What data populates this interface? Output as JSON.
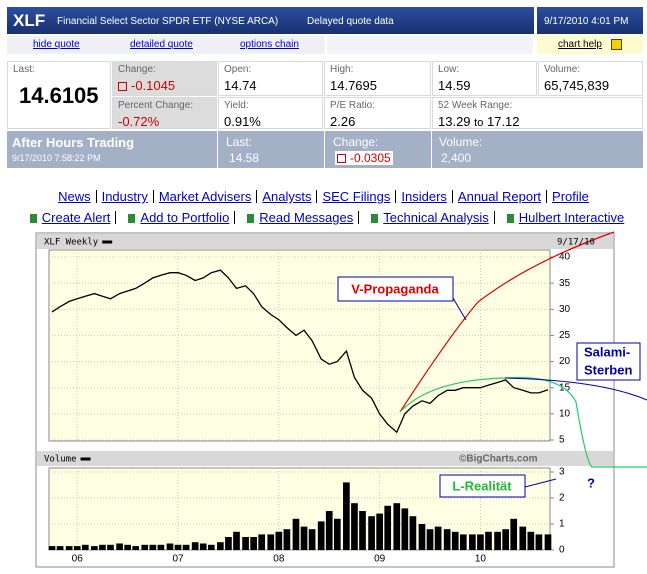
{
  "header": {
    "symbol": "XLF",
    "name": "Financial Select Sector SPDR ETF (NYSE ARCA)",
    "note": "Delayed quote data",
    "datetime": "9/17/2010 4:01 PM"
  },
  "links": [
    "hide quote",
    "detailed quote",
    "options chain",
    "chart help"
  ],
  "quote": {
    "last": {
      "label": "Last:",
      "value": "14.6105"
    },
    "change": {
      "label": "Change:",
      "value": "-0.1045"
    },
    "open": {
      "label": "Open:",
      "value": "14.74"
    },
    "high": {
      "label": "High:",
      "value": "14.7695"
    },
    "low": {
      "label": "Low:",
      "value": "14.59"
    },
    "volume": {
      "label": "Volume:",
      "value": "65,745,839"
    },
    "percent_change": {
      "label": "Percent Change:",
      "value": "-0.72%"
    },
    "yield": {
      "label": "Yield:",
      "value": "0.91%"
    },
    "pe": {
      "label": "P/E Ratio:",
      "value": "2.26"
    },
    "range": {
      "label": "52 Week Range:",
      "low": "13.29",
      "joiner": "to",
      "high": "17.12"
    }
  },
  "after_hours": {
    "title": "After Hours Trading",
    "time": "9/17/2010 7:58:22 PM",
    "last": {
      "label": "Last:",
      "value": "14.58"
    },
    "change": {
      "label": "Change:",
      "value": "-0.0305"
    },
    "volume": {
      "label": "Volume:",
      "value": "2,400"
    }
  },
  "nav": [
    "News",
    "Industry",
    "Market Advisers",
    "Analysts",
    "SEC Filings",
    "Insiders",
    "Annual Report",
    "Profile"
  ],
  "tools": [
    "Create Alert",
    "Add to Portfolio",
    "Read Messages",
    "Technical Analysis",
    "Hulbert Interactive"
  ],
  "chart_data": {
    "type": "line",
    "date": "9/17/10",
    "source": "©BigCharts.com",
    "x": [
      2005.75,
      2005.83,
      2005.92,
      2006.0,
      2006.08,
      2006.17,
      2006.25,
      2006.33,
      2006.42,
      2006.5,
      2006.58,
      2006.67,
      2006.75,
      2006.83,
      2006.92,
      2007.0,
      2007.08,
      2007.17,
      2007.25,
      2007.33,
      2007.42,
      2007.5,
      2007.58,
      2007.67,
      2007.75,
      2007.83,
      2007.92,
      2008.0,
      2008.08,
      2008.17,
      2008.25,
      2008.33,
      2008.42,
      2008.5,
      2008.58,
      2008.67,
      2008.75,
      2008.83,
      2008.92,
      2009.0,
      2009.08,
      2009.17,
      2009.25,
      2009.33,
      2009.42,
      2009.5,
      2009.58,
      2009.67,
      2009.75,
      2009.83,
      2009.92,
      2010.0,
      2010.08,
      2010.17,
      2010.25,
      2010.33,
      2010.42,
      2010.5,
      2010.58,
      2010.67
    ],
    "series": [
      {
        "name": "XLF Weekly",
        "color": "#000000",
        "values": [
          29.5,
          30.5,
          31.5,
          32.0,
          32.5,
          33.0,
          32.5,
          32.0,
          33.0,
          33.5,
          34.0,
          35.0,
          36.0,
          36.5,
          37.0,
          37.0,
          36.5,
          35.5,
          36.0,
          37.0,
          37.5,
          36.0,
          34.0,
          34.5,
          33.0,
          30.5,
          29.0,
          28.0,
          26.5,
          25.0,
          26.0,
          24.0,
          20.5,
          19.5,
          20.0,
          22.0,
          17.0,
          14.5,
          13.0,
          10.0,
          8.0,
          6.5,
          10.0,
          11.5,
          12.5,
          12.0,
          13.5,
          14.5,
          14.5,
          15.0,
          15.0,
          15.0,
          15.5,
          16.0,
          16.5,
          15.0,
          14.5,
          14.0,
          14.0,
          14.6
        ]
      },
      {
        "name": "Volume",
        "color": "#000000",
        "axis": "y2",
        "values": [
          0.15,
          0.15,
          0.15,
          0.15,
          0.2,
          0.15,
          0.2,
          0.2,
          0.25,
          0.2,
          0.15,
          0.2,
          0.2,
          0.2,
          0.25,
          0.2,
          0.2,
          0.3,
          0.25,
          0.2,
          0.3,
          0.5,
          0.7,
          0.5,
          0.5,
          0.6,
          0.6,
          0.7,
          0.8,
          1.2,
          0.9,
          0.8,
          1.1,
          1.5,
          1.2,
          2.6,
          1.8,
          1.5,
          1.3,
          1.4,
          1.7,
          1.8,
          1.6,
          1.3,
          1.0,
          0.8,
          0.9,
          0.8,
          0.7,
          0.6,
          0.6,
          0.6,
          0.7,
          0.7,
          0.8,
          1.2,
          0.9,
          0.7,
          0.6,
          0.6
        ]
      }
    ],
    "xlim": [
      2005.72,
      2010.69
    ],
    "xticks": [
      {
        "value": 2006,
        "label": "06"
      },
      {
        "value": 2007,
        "label": "07"
      },
      {
        "value": 2008,
        "label": "08"
      },
      {
        "value": 2009,
        "label": "09"
      },
      {
        "value": 2010,
        "label": "10"
      }
    ],
    "ylim": [
      5,
      40
    ],
    "yticks": [
      5,
      10,
      15,
      20,
      25,
      30,
      35,
      40
    ],
    "y2lim": [
      0,
      3
    ],
    "y2ticks": [
      0,
      1,
      2,
      3
    ],
    "grid": true,
    "annotations": {
      "v": "V-Propaganda",
      "salami": [
        "Salami-",
        "Sterben"
      ],
      "l": "L-Realität",
      "q": "?"
    }
  }
}
